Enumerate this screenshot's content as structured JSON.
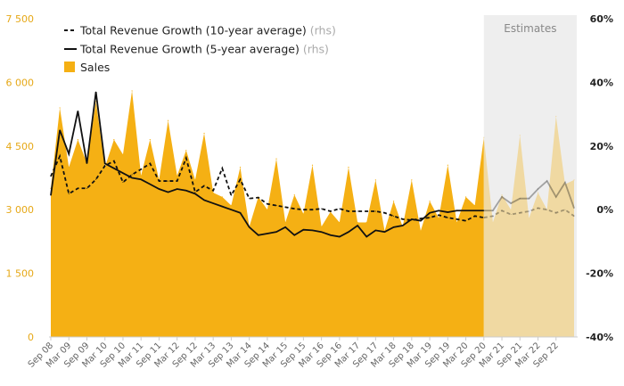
{
  "chart_data": {
    "type": "area",
    "estimates_label": "Estimates",
    "colors": {
      "sales": "#f5b014",
      "sales_estimate": "#f0d9a2",
      "line": "#111111",
      "estimate_band": "#eeeeee",
      "left_ticks": "#e6a817"
    },
    "y_left": {
      "ylim": [
        0,
        7500
      ],
      "ticks": [
        0,
        1500,
        3000,
        4500,
        6000,
        7500
      ],
      "tick_labels": [
        "0",
        "1 500",
        "3 000",
        "4 500",
        "6 000",
        "7 500"
      ]
    },
    "y_right": {
      "ylim": [
        -40,
        60
      ],
      "ticks": [
        -40,
        -20,
        0,
        20,
        40,
        60
      ],
      "tick_labels": [
        "-40%",
        "-20%",
        "0%",
        "20%",
        "40%",
        "60%"
      ]
    },
    "x_tick_labels": [
      "Sep 08",
      "Mar 09",
      "Sep 09",
      "Mar 10",
      "Sep 10",
      "Mar 11",
      "Sep 11",
      "Mar 12",
      "Sep 12",
      "Mar 13",
      "Sep 13",
      "Mar 14",
      "Sep 14",
      "Mar 15",
      "Sep 15",
      "Mar 16",
      "Sep 16",
      "Mar 17",
      "Sep 17",
      "Mar 18",
      "Sep 18",
      "Mar 19",
      "Sep 19",
      "Mar 20",
      "Sep 20",
      "Mar 21",
      "Sep 21",
      "Mar 22",
      "Sep 22"
    ],
    "estimates_start_index": 48,
    "series": [
      {
        "name": "Total Revenue Growth (10-year average)",
        "name_suffix": "(rhs)",
        "axis": "right",
        "style": "dashed",
        "values": [
          10.5,
          16.8,
          5.0,
          6.7,
          6.7,
          9.5,
          13.8,
          15.3,
          8.6,
          11.0,
          12.7,
          14.5,
          9.0,
          9.0,
          9.0,
          16.2,
          5.5,
          7.5,
          6.0,
          13.0,
          4.5,
          9.5,
          3.5,
          3.8,
          1.8,
          1.3,
          0.8,
          0.3,
          0.0,
          0.0,
          0.3,
          -0.5,
          0.3,
          -0.5,
          -0.5,
          -0.5,
          -0.5,
          -1.0,
          -2.0,
          -3.0,
          -3.3,
          -2.8,
          -2.5,
          -1.7,
          -2.5,
          -3.0,
          -3.5,
          -2.0,
          -2.5,
          -2.0,
          -0.3,
          -1.5,
          -1.0,
          -0.5,
          0.5,
          0.0,
          -1.0,
          0.0,
          -2.0
        ],
        "estimate_from_index": 48
      },
      {
        "name": "Total Revenue Growth (5-year average)",
        "name_suffix": "(rhs)",
        "axis": "right",
        "style": "solid",
        "values": [
          4.5,
          25.0,
          17.5,
          31.0,
          14.5,
          37.0,
          14.5,
          13.0,
          11.5,
          10.0,
          9.5,
          8.0,
          6.5,
          5.5,
          6.5,
          6.0,
          5.0,
          3.0,
          2.0,
          1.0,
          0.0,
          -1.0,
          -5.5,
          -8.0,
          -7.5,
          -7.0,
          -5.5,
          -8.0,
          -6.3,
          -6.5,
          -7.0,
          -8.0,
          -8.5,
          -7.0,
          -5.0,
          -8.5,
          -6.5,
          -7.0,
          -5.5,
          -5.0,
          -3.0,
          -3.5,
          -1.0,
          -0.3,
          -0.8,
          -0.3,
          -0.3,
          -0.3,
          -0.3,
          -0.3,
          4.0,
          2.0,
          3.5,
          3.5,
          6.5,
          9.0,
          4.0,
          8.5,
          0.5
        ],
        "estimate_from_index": 48
      },
      {
        "name": "Sales",
        "axis": "left",
        "style": "area",
        "values": [
          3500,
          5400,
          4000,
          4650,
          4100,
          5550,
          4000,
          4650,
          4300,
          5800,
          3800,
          4650,
          3700,
          5100,
          3800,
          4400,
          3700,
          4800,
          3400,
          3300,
          3100,
          4000,
          2600,
          3300,
          3000,
          4200,
          2700,
          3350,
          2900,
          4050,
          2600,
          2950,
          2700,
          4000,
          2700,
          2700,
          3700,
          2500,
          3200,
          2600,
          3700,
          2500,
          3200,
          2800,
          4050,
          2700,
          3300,
          3100,
          4700,
          2700,
          3350,
          3000,
          4750,
          2800,
          3400,
          3000,
          5200,
          3600,
          3700
        ]
      }
    ]
  }
}
